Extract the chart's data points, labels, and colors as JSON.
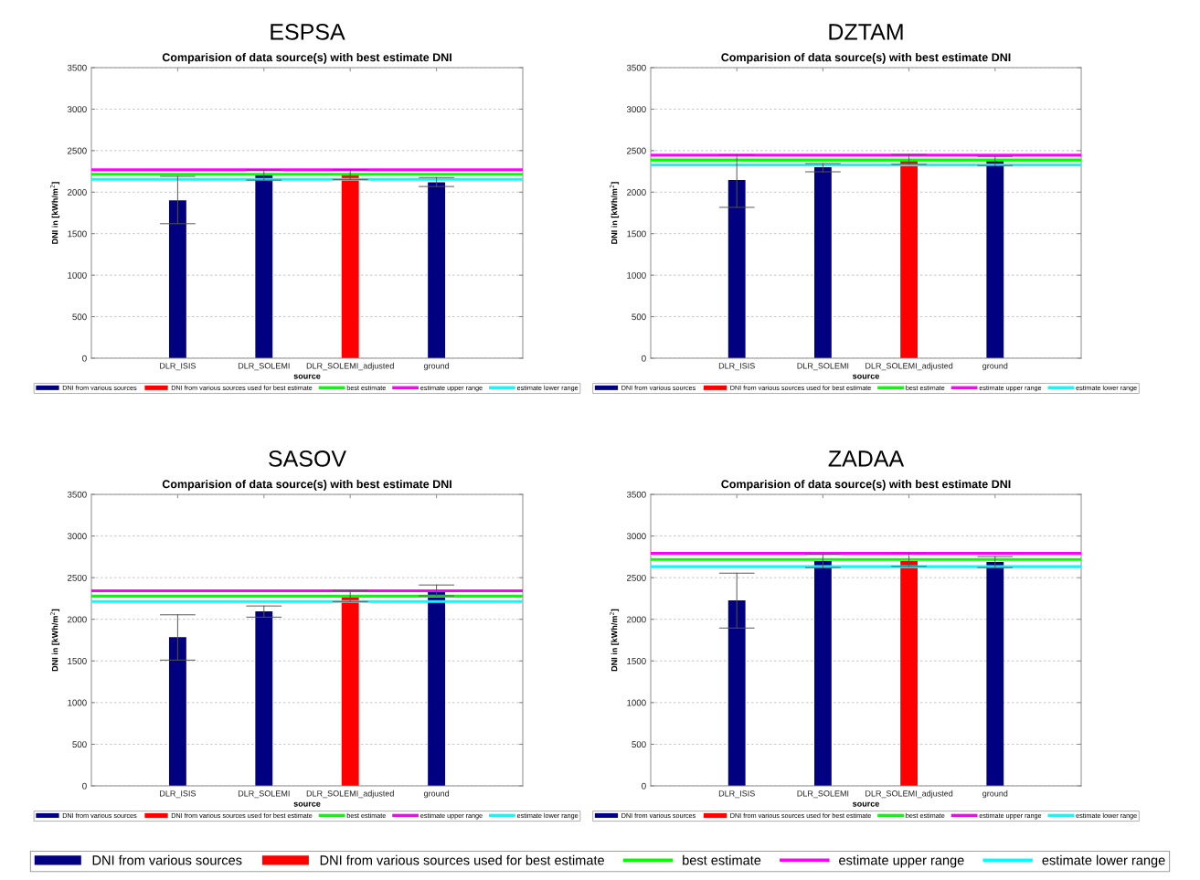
{
  "chart_data": [
    {
      "type": "bar",
      "title": "ESPSA",
      "subtitle": "Comparision of data source(s) with best estimate DNI",
      "xlabel": "source",
      "ylabel": "DNI in [kWh/m$^{2}$]",
      "categories": [
        "DLR_ISIS",
        "DLR_SOLEMI",
        "DLR_SOLEMI_adjusted",
        "ground"
      ],
      "series": [
        {
          "name": "DNI from various sources",
          "color": "#000080",
          "values": [
            1900,
            2200,
            null,
            2120
          ],
          "errors": [
            [
              1620,
              2190
            ],
            [
              2145,
              2267
            ],
            null,
            [
              2068,
              2177
            ]
          ]
        },
        {
          "name": "DNI from various sources used for best estimate",
          "color": "#ff0000",
          "values": [
            null,
            null,
            2200,
            null
          ],
          "errors": [
            null,
            null,
            [
              2153,
              2271
            ],
            null
          ]
        }
      ],
      "ref_lines": [
        {
          "axis": "y",
          "value": 2215,
          "label": "best estimate",
          "color": "#00ff00"
        },
        {
          "axis": "y",
          "value": 2270,
          "label": "estimate upper range",
          "color": "#ff00ff"
        },
        {
          "axis": "y",
          "value": 2155,
          "label": "estimate lower range",
          "color": "#00ffff"
        }
      ],
      "ylim": [
        0,
        3500
      ],
      "yticks": [
        0,
        500,
        1000,
        1500,
        2000,
        2500,
        3000,
        3500
      ],
      "grid": "y",
      "legend": "bottom"
    },
    {
      "type": "bar",
      "title": "DZTAM",
      "subtitle": "Comparision of data source(s) with best estimate DNI",
      "xlabel": "source",
      "ylabel": "DNI in [kWh/m$^{2}$]",
      "categories": [
        "DLR_ISIS",
        "DLR_SOLEMI",
        "DLR_SOLEMI_adjusted",
        "ground"
      ],
      "series": [
        {
          "name": "DNI from various sources",
          "color": "#000080",
          "values": [
            2145,
            2300,
            null,
            2380
          ],
          "errors": [
            [
              1817,
              2450
            ],
            [
              2245,
              2344
            ],
            null,
            [
              2320,
              2430
            ]
          ]
        },
        {
          "name": "DNI from various sources used for best estimate",
          "color": "#ff0000",
          "values": [
            null,
            null,
            2390,
            null
          ],
          "errors": [
            null,
            null,
            [
              2336,
              2454
            ],
            null
          ]
        }
      ],
      "ref_lines": [
        {
          "axis": "y",
          "value": 2387,
          "label": "best estimate",
          "color": "#00ff00"
        },
        {
          "axis": "y",
          "value": 2446,
          "label": "estimate upper range",
          "color": "#ff00ff"
        },
        {
          "axis": "y",
          "value": 2328,
          "label": "estimate lower range",
          "color": "#00ffff"
        }
      ],
      "ylim": [
        0,
        3500
      ],
      "yticks": [
        0,
        500,
        1000,
        1500,
        2000,
        2500,
        3000,
        3500
      ],
      "grid": "y",
      "legend": "bottom"
    },
    {
      "type": "bar",
      "title": "SASOV",
      "subtitle": "Comparision of data source(s) with best estimate DNI",
      "xlabel": "source",
      "ylabel": "DNI in [kWh/m$^{2}$]",
      "categories": [
        "DLR_ISIS",
        "DLR_SOLEMI",
        "DLR_SOLEMI_adjusted",
        "ground"
      ],
      "series": [
        {
          "name": "DNI from various sources",
          "color": "#000080",
          "values": [
            1785,
            2095,
            null,
            2335
          ],
          "errors": [
            [
              1510,
              2054
            ],
            [
              2026,
              2160
            ],
            null,
            [
              2282,
              2412
            ]
          ]
        },
        {
          "name": "DNI from various sources used for best estimate",
          "color": "#ff0000",
          "values": [
            null,
            null,
            2270,
            null
          ],
          "errors": [
            null,
            null,
            [
              2213,
              2347
            ],
            null
          ]
        }
      ],
      "ref_lines": [
        {
          "axis": "y",
          "value": 2278,
          "label": "best estimate",
          "color": "#00ff00"
        },
        {
          "axis": "y",
          "value": 2343,
          "label": "estimate upper range",
          "color": "#ff00ff"
        },
        {
          "axis": "y",
          "value": 2213,
          "label": "estimate lower range",
          "color": "#00ffff"
        }
      ],
      "ylim": [
        0,
        3500
      ],
      "yticks": [
        0,
        500,
        1000,
        1500,
        2000,
        2500,
        3000,
        3500
      ],
      "grid": "y",
      "legend": "bottom"
    },
    {
      "type": "bar",
      "title": "ZADAA",
      "subtitle": "Comparision of data source(s) with best estimate DNI",
      "xlabel": "source",
      "ylabel": "DNI in [kWh/m$^{2}$]",
      "categories": [
        "DLR_ISIS",
        "DLR_SOLEMI",
        "DLR_SOLEMI_adjusted",
        "ground"
      ],
      "series": [
        {
          "name": "DNI from various sources",
          "color": "#000080",
          "values": [
            2228,
            2700,
            null,
            2687
          ],
          "errors": [
            [
              1895,
              2554
            ],
            [
              2621,
              2778
            ],
            null,
            [
              2621,
              2754
            ]
          ]
        },
        {
          "name": "DNI from various sources used for best estimate",
          "color": "#ff0000",
          "values": [
            null,
            null,
            2700,
            null
          ],
          "errors": [
            null,
            null,
            [
              2636,
              2793
            ],
            null
          ]
        }
      ],
      "ref_lines": [
        {
          "axis": "y",
          "value": 2719,
          "label": "best estimate",
          "color": "#00ff00"
        },
        {
          "axis": "y",
          "value": 2793,
          "label": "estimate upper range",
          "color": "#ff00ff"
        },
        {
          "axis": "y",
          "value": 2632,
          "label": "estimate lower range",
          "color": "#00ffff"
        }
      ],
      "ylim": [
        0,
        3500
      ],
      "yticks": [
        0,
        500,
        1000,
        1500,
        2000,
        2500,
        3000,
        3500
      ],
      "grid": "y",
      "legend": "bottom"
    }
  ]
}
